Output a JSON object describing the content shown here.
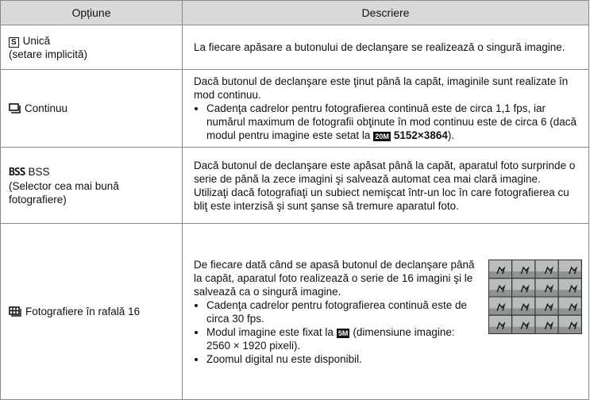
{
  "table": {
    "headers": [
      "Opțiune",
      "Descriere"
    ],
    "rows": [
      {
        "option": {
          "icon": "S",
          "lines": [
            "Unică",
            "(setare implicită)"
          ]
        },
        "description": {
          "paragraphs": [
            "La fiecare apăsare a butonului de declanşare se realizează o singură imagine."
          ]
        }
      },
      {
        "option": {
          "lines": [
            "Continuu"
          ]
        },
        "description": {
          "paragraphs": [
            "Dacă butonul de declanşare este ţinut până la capăt, imaginile sunt realizate în mod continuu."
          ],
          "bullets": [
            {
              "text": "Cadenţa cadrelor pentru fotografierea continuă este de circa 1,1 fps, iar numărul maximum de fotografii obţinute în mod continuu este de circa 6 (dacă modul pentru imagine este setat la",
              "icon": "20M",
              "bold": "5152×3864",
              "end": ")."
            }
          ]
        }
      },
      {
        "option": {
          "icon": "BSS",
          "lines": [
            "BSS",
            "(Selector cea mai bună fotografiere)"
          ]
        },
        "description": {
          "paragraphs": [
            "Dacă butonul de declanşare este apăsat până la capăt, aparatul foto surprinde o serie de până la zece imagini şi salvează automat cea mai clară imagine.",
            "Utilizaţi dacă fotografiaţi un subiect nemişcat într-un loc în care fotografierea cu bliţ este interzisă şi sunt şanse să tremure aparatul foto."
          ]
        }
      },
      {
        "option": {
          "lines": [
            "Fotografiere în rafală 16"
          ]
        },
        "description": {
          "paragraphs": [
            "De fiecare dată când se apasă butonul de declanşare până la capăt, aparatul foto realizează o serie de 16 imagini şi le salvează ca o singură imagine."
          ],
          "bullets": [
            "Cadenţa cadrelor pentru fotografierea continuă este de circa 30 fps.",
            {
              "text": "Modul imagine este fixat la",
              "icon": "5M",
              "end": "(dimensiune imagine: 2560 × 1920 pixeli)."
            },
            "Zoomul digital nu este disponibil."
          ]
        }
      }
    ]
  }
}
